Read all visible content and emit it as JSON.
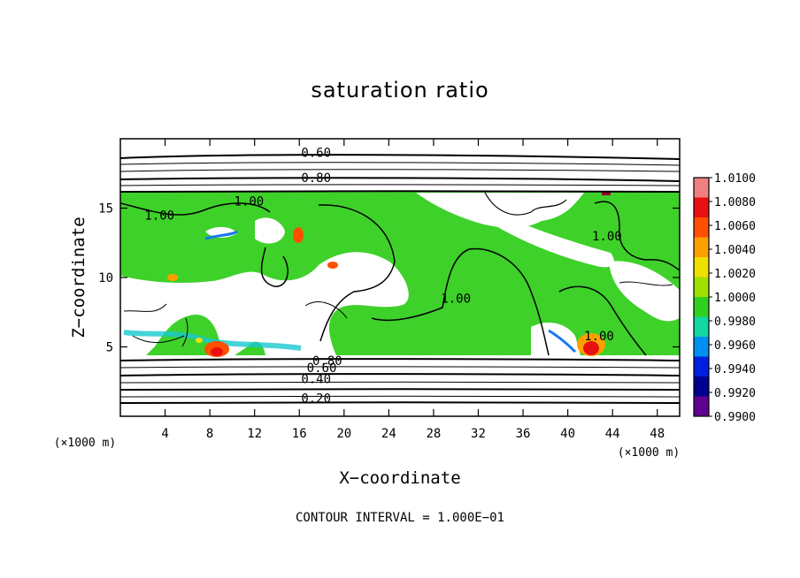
{
  "chart_data": {
    "type": "heatmap",
    "title": "saturation ratio",
    "xlabel": "X−coordinate",
    "ylabel": "Z−coordinate",
    "x_unit_label": "(×1000 m)",
    "y_unit_label": "(×1000 m)",
    "xlim": [
      0,
      50
    ],
    "ylim": [
      0,
      20
    ],
    "x_ticks": [
      4,
      8,
      12,
      16,
      20,
      24,
      28,
      32,
      36,
      40,
      44,
      48
    ],
    "y_ticks": [
      5,
      10,
      15
    ],
    "colorbar": {
      "labels": [
        "1.0100",
        "1.0080",
        "1.0060",
        "1.0040",
        "1.0020",
        "1.0000",
        "0.9980",
        "0.9960",
        "0.9940",
        "0.9920",
        "0.9900"
      ],
      "colors": [
        "#f08080",
        "#e81010",
        "#ff5000",
        "#ffa000",
        "#f0e000",
        "#a0e000",
        "#30d020",
        "#10d8a0",
        "#0090f0",
        "#0020e0",
        "#000090",
        "#600090"
      ]
    },
    "contour_labels": [
      {
        "text": "0.60",
        "x": 17.5,
        "z": 19.0
      },
      {
        "text": "0.80",
        "x": 17.5,
        "z": 17.2
      },
      {
        "text": "1.00",
        "x": 11.5,
        "z": 15.5
      },
      {
        "text": "1.00",
        "x": 3.5,
        "z": 14.5
      },
      {
        "text": "1.00",
        "x": 30.0,
        "z": 8.5
      },
      {
        "text": "1.00",
        "x": 42.8,
        "z": 5.8
      },
      {
        "text": "1.00",
        "x": 43.5,
        "z": 13.0
      },
      {
        "text": "0.80",
        "x": 18.5,
        "z": 4.0
      },
      {
        "text": "0.60",
        "x": 18.0,
        "z": 3.5
      },
      {
        "text": "0.40",
        "x": 17.5,
        "z": 2.7
      },
      {
        "text": "0.20",
        "x": 17.5,
        "z": 1.3
      }
    ],
    "footer": "CONTOUR INTERVAL = 1.000E−01"
  }
}
